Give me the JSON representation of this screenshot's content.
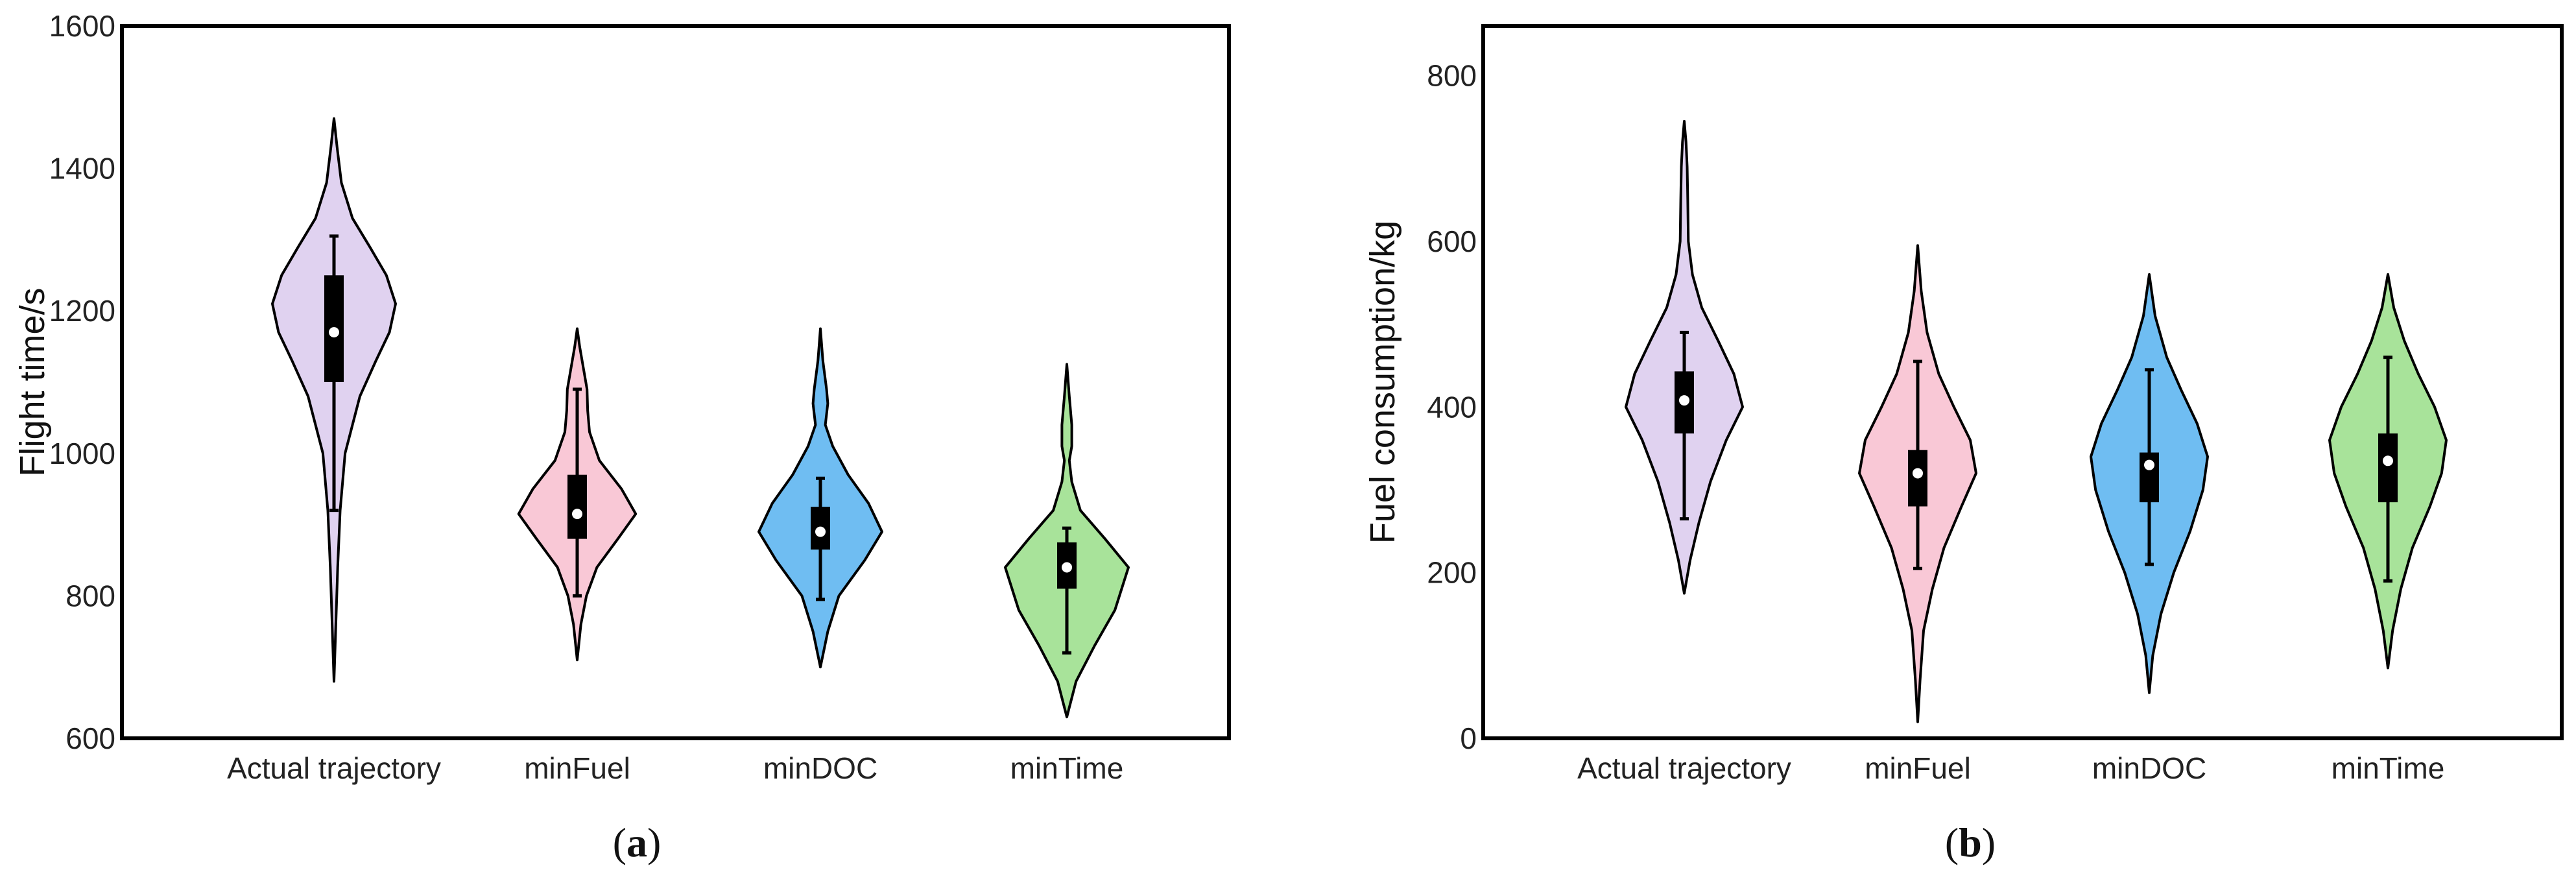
{
  "chart_data": [
    {
      "type": "violin",
      "panel": "a",
      "ylabel": "Flight time/s",
      "xlabel": "",
      "ylim": [
        600,
        1600
      ],
      "yticks": [
        600,
        800,
        1000,
        1200,
        1400,
        1600
      ],
      "categories": [
        "Actual trajectory",
        "minFuel",
        "minDOC",
        "minTime"
      ],
      "colors": [
        "#e0d2f0",
        "#f9c8d6",
        "#6fbdf2",
        "#a8e39a"
      ],
      "series": [
        {
          "name": "Actual trajectory",
          "min": 680,
          "max": 1470,
          "whisker_low": 920,
          "whisker_high": 1305,
          "q1": 1100,
          "q3": 1250,
          "median": 1170,
          "density": [
            [
              680,
              0
            ],
            [
              760,
              0.03
            ],
            [
              840,
              0.06
            ],
            [
              920,
              0.1
            ],
            [
              1000,
              0.18
            ],
            [
              1080,
              0.42
            ],
            [
              1130,
              0.68
            ],
            [
              1170,
              0.9
            ],
            [
              1210,
              1.0
            ],
            [
              1250,
              0.85
            ],
            [
              1290,
              0.58
            ],
            [
              1330,
              0.3
            ],
            [
              1380,
              0.12
            ],
            [
              1430,
              0.05
            ],
            [
              1470,
              0
            ]
          ]
        },
        {
          "name": "minFuel",
          "min": 710,
          "max": 1175,
          "whisker_low": 800,
          "whisker_high": 1090,
          "q1": 880,
          "q3": 970,
          "median": 915,
          "density": [
            [
              710,
              0
            ],
            [
              760,
              0.06
            ],
            [
              800,
              0.15
            ],
            [
              840,
              0.32
            ],
            [
              880,
              0.66
            ],
            [
              915,
              0.95
            ],
            [
              950,
              0.72
            ],
            [
              990,
              0.36
            ],
            [
              1030,
              0.2
            ],
            [
              1060,
              0.17
            ],
            [
              1090,
              0.16
            ],
            [
              1120,
              0.1
            ],
            [
              1150,
              0.04
            ],
            [
              1175,
              0
            ]
          ]
        },
        {
          "name": "minDOC",
          "min": 700,
          "max": 1175,
          "whisker_low": 795,
          "whisker_high": 965,
          "q1": 865,
          "q3": 925,
          "median": 890,
          "density": [
            [
              700,
              0
            ],
            [
              750,
              0.12
            ],
            [
              800,
              0.3
            ],
            [
              850,
              0.72
            ],
            [
              890,
              1.0
            ],
            [
              930,
              0.78
            ],
            [
              970,
              0.45
            ],
            [
              1010,
              0.2
            ],
            [
              1040,
              0.08
            ],
            [
              1070,
              0.12
            ],
            [
              1090,
              0.1
            ],
            [
              1130,
              0.04
            ],
            [
              1175,
              0
            ]
          ]
        },
        {
          "name": "minTime",
          "min": 630,
          "max": 1125,
          "whisker_low": 720,
          "whisker_high": 895,
          "q1": 810,
          "q3": 875,
          "median": 840,
          "density": [
            [
              630,
              0
            ],
            [
              680,
              0.15
            ],
            [
              730,
              0.45
            ],
            [
              780,
              0.78
            ],
            [
              840,
              1.0
            ],
            [
              880,
              0.62
            ],
            [
              920,
              0.22
            ],
            [
              960,
              0.08
            ],
            [
              990,
              0.04
            ],
            [
              1010,
              0.08
            ],
            [
              1040,
              0.08
            ],
            [
              1080,
              0.04
            ],
            [
              1125,
              0
            ]
          ]
        }
      ]
    },
    {
      "type": "violin",
      "panel": "b",
      "ylabel": "Fuel consumption/kg",
      "xlabel": "",
      "ylim": [
        0,
        860
      ],
      "yticks": [
        0,
        200,
        400,
        600,
        800
      ],
      "categories": [
        "Actual trajectory",
        "minFuel",
        "minDOC",
        "minTime"
      ],
      "colors": [
        "#e0d2f0",
        "#f9c8d6",
        "#6fbdf2",
        "#a8e39a"
      ],
      "series": [
        {
          "name": "Actual trajectory",
          "min": 175,
          "max": 745,
          "whisker_low": 265,
          "whisker_high": 490,
          "q1": 368,
          "q3": 443,
          "median": 408,
          "density": [
            [
              175,
              0
            ],
            [
              215,
              0.1
            ],
            [
              260,
              0.25
            ],
            [
              310,
              0.45
            ],
            [
              360,
              0.72
            ],
            [
              400,
              1.0
            ],
            [
              440,
              0.85
            ],
            [
              480,
              0.58
            ],
            [
              520,
              0.3
            ],
            [
              560,
              0.14
            ],
            [
              600,
              0.07
            ],
            [
              650,
              0.06
            ],
            [
              690,
              0.05
            ],
            [
              720,
              0.03
            ],
            [
              745,
              0
            ]
          ]
        },
        {
          "name": "minFuel",
          "min": 20,
          "max": 595,
          "whisker_low": 205,
          "whisker_high": 455,
          "q1": 280,
          "q3": 348,
          "median": 320,
          "density": [
            [
              20,
              0
            ],
            [
              70,
              0.04
            ],
            [
              130,
              0.1
            ],
            [
              180,
              0.25
            ],
            [
              230,
              0.45
            ],
            [
              280,
              0.75
            ],
            [
              320,
              1.0
            ],
            [
              360,
              0.9
            ],
            [
              400,
              0.62
            ],
            [
              440,
              0.36
            ],
            [
              490,
              0.16
            ],
            [
              540,
              0.06
            ],
            [
              595,
              0
            ]
          ]
        },
        {
          "name": "minDOC",
          "min": 55,
          "max": 560,
          "whisker_low": 210,
          "whisker_high": 445,
          "q1": 285,
          "q3": 345,
          "median": 330,
          "density": [
            [
              55,
              0
            ],
            [
              100,
              0.06
            ],
            [
              150,
              0.2
            ],
            [
              200,
              0.42
            ],
            [
              250,
              0.7
            ],
            [
              300,
              0.92
            ],
            [
              340,
              1.0
            ],
            [
              380,
              0.82
            ],
            [
              420,
              0.55
            ],
            [
              460,
              0.3
            ],
            [
              510,
              0.1
            ],
            [
              560,
              0
            ]
          ]
        },
        {
          "name": "minTime",
          "min": 85,
          "max": 560,
          "whisker_low": 190,
          "whisker_high": 460,
          "q1": 285,
          "q3": 368,
          "median": 335,
          "density": [
            [
              85,
              0
            ],
            [
              130,
              0.08
            ],
            [
              180,
              0.22
            ],
            [
              230,
              0.42
            ],
            [
              280,
              0.72
            ],
            [
              320,
              0.92
            ],
            [
              360,
              1.0
            ],
            [
              400,
              0.8
            ],
            [
              440,
              0.52
            ],
            [
              480,
              0.28
            ],
            [
              520,
              0.1
            ],
            [
              560,
              0
            ]
          ]
        }
      ]
    }
  ],
  "panel_labels": {
    "a": "a",
    "b": "b"
  }
}
